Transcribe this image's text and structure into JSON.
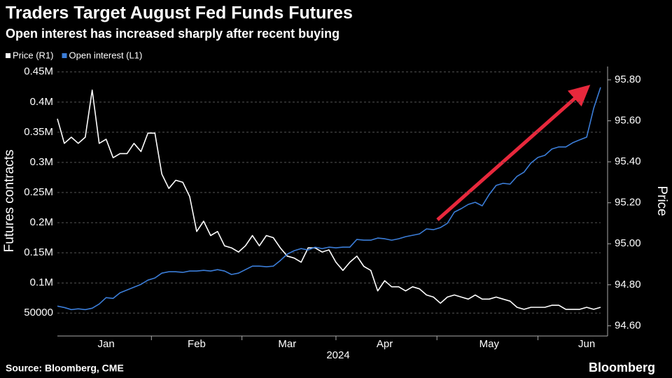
{
  "chart_data": {
    "type": "line",
    "title": "Traders Target August Fed Funds Futures",
    "subtitle": "Open interest has increased sharply after recent buying",
    "source": "Source: Bloomberg, CME",
    "brand": "Bloomberg",
    "x_label": "2024",
    "y_label": "Futures contracts",
    "y2_label": "Price",
    "grid": true,
    "categories": [
      null,
      null,
      null,
      null,
      null,
      null,
      null,
      "Jan",
      null,
      null,
      null,
      null,
      null,
      null,
      null,
      null,
      null,
      null,
      null,
      null,
      "Feb",
      null,
      null,
      null,
      null,
      null,
      null,
      null,
      null,
      null,
      null,
      null,
      null,
      "Mar",
      null,
      null,
      null,
      null,
      null,
      null,
      null,
      null,
      null,
      null,
      null,
      null,
      null,
      "Apr",
      null,
      null,
      null,
      null,
      null,
      null,
      null,
      null,
      null,
      null,
      null,
      null,
      null,
      null,
      "May",
      null,
      null,
      null,
      null,
      null,
      null,
      null,
      null,
      null,
      null,
      null,
      null,
      null,
      "Jun",
      null,
      null
    ],
    "series": [
      {
        "name": "Price (R1)",
        "color": "#ffffff",
        "axis": "y2",
        "values": [
          95.61,
          95.49,
          95.52,
          95.49,
          95.52,
          95.75,
          95.49,
          95.51,
          95.42,
          95.44,
          95.44,
          95.49,
          95.45,
          95.54,
          95.54,
          95.34,
          95.27,
          95.31,
          95.3,
          95.23,
          95.06,
          95.11,
          95.04,
          95.06,
          94.99,
          94.98,
          94.96,
          94.99,
          95.04,
          94.99,
          95.04,
          95.03,
          94.98,
          94.94,
          94.93,
          94.91,
          94.98,
          94.98,
          94.96,
          94.97,
          94.91,
          94.87,
          94.91,
          94.94,
          94.89,
          94.87,
          94.77,
          94.82,
          94.79,
          94.79,
          94.77,
          94.79,
          94.78,
          94.75,
          94.74,
          94.71,
          94.74,
          94.75,
          94.74,
          94.73,
          94.75,
          94.73,
          94.73,
          94.74,
          94.73,
          94.72,
          94.69,
          94.68,
          94.69,
          94.69,
          94.69,
          94.7,
          94.7,
          94.68,
          94.68,
          94.68,
          94.69,
          94.68,
          94.69
        ]
      },
      {
        "name": "Open interest (L1)",
        "color": "#3b7dd8",
        "values": [
          61600,
          59300,
          55800,
          57000,
          55800,
          58100,
          65100,
          75600,
          74400,
          83700,
          88400,
          93000,
          97700,
          104700,
          108200,
          116300,
          118600,
          118600,
          117500,
          119800,
          119800,
          120900,
          119800,
          122100,
          119800,
          114000,
          116300,
          122100,
          127900,
          127900,
          126800,
          127900,
          137200,
          147700,
          153500,
          157000,
          154700,
          159300,
          157000,
          159300,
          158200,
          159300,
          159300,
          172100,
          171000,
          171000,
          174400,
          173300,
          171000,
          173300,
          176800,
          179100,
          181400,
          189600,
          188400,
          191900,
          198900,
          217500,
          223300,
          230300,
          233800,
          228000,
          246600,
          261700,
          265200,
          264000,
          276800,
          283800,
          298900,
          308200,
          311700,
          322100,
          325600,
          325600,
          332600,
          337300,
          341900,
          389600,
          424500
        ]
      }
    ],
    "ylim": [
      12000,
      459000
    ],
    "yticks": [
      50000,
      {
        "value": 100000,
        "label": "0.1M"
      },
      {
        "value": 150000,
        "label": "0.15M"
      },
      {
        "value": 200000,
        "label": "0.2M"
      },
      {
        "value": 250000,
        "label": "0.25M"
      },
      {
        "value": 300000,
        "label": "0.3M"
      },
      {
        "value": 350000,
        "label": "0.35M"
      },
      {
        "value": 400000,
        "label": "0.4M"
      },
      {
        "value": 450000,
        "label": "0.45M"
      }
    ],
    "y2lim": [
      94.55,
      95.865
    ],
    "y2ticks": [
      {
        "value": 94.6,
        "label": "94.60"
      },
      {
        "value": 94.8,
        "label": "94.80"
      },
      {
        "value": 95,
        "label": "95.00"
      },
      {
        "value": 95.2,
        "label": "95.20"
      },
      {
        "value": 95.4,
        "label": "95.40"
      },
      {
        "value": 95.6,
        "label": "95.60"
      },
      {
        "value": 95.8,
        "label": "95.80"
      }
    ]
  }
}
